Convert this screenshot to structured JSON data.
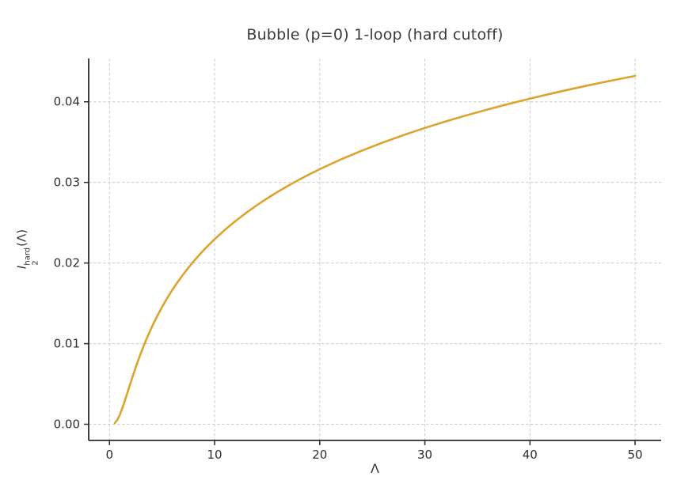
{
  "colors": {
    "curve": "#DCA42C",
    "grid": "#cccccc",
    "spine": "#2b2b2b",
    "tick_text": "#2e2e2e",
    "title_text": "#3a3a3a",
    "background": "#ffffff"
  },
  "ylabel_parts": {
    "base": "I",
    "sub": "2",
    "sup": "hard",
    "arg": "(Λ)"
  },
  "chart_data": {
    "type": "line",
    "title": "Bubble (p=0) 1-loop (hard cutoff)",
    "xlabel": "Λ",
    "ylabel": "I_2^hard(Λ)",
    "grid": true,
    "grid_style": "dashed",
    "legend": false,
    "xlim": [
      -1.98,
      52.48
    ],
    "ylim": [
      -0.00201,
      0.04537
    ],
    "xticks": [
      0,
      10,
      20,
      30,
      40,
      50
    ],
    "xtick_labels": [
      "0",
      "10",
      "20",
      "30",
      "40",
      "50"
    ],
    "yticks": [
      0.0,
      0.01,
      0.02,
      0.03,
      0.04
    ],
    "ytick_labels": [
      "0.00",
      "0.01",
      "0.02",
      "0.03",
      "0.04"
    ],
    "series": [
      {
        "name": "I2_hard",
        "x": [
          0.5,
          0.75,
          1,
          1.25,
          1.5,
          1.75,
          2,
          2.5,
          3,
          3.5,
          4,
          4.5,
          5,
          5.5,
          6,
          6.5,
          7,
          7.5,
          8,
          8.5,
          9,
          9.5,
          10,
          11,
          12,
          13,
          14,
          15,
          16,
          17,
          18,
          19,
          20,
          22,
          24,
          26,
          28,
          30,
          32,
          34,
          36,
          38,
          40,
          42,
          44,
          46,
          48,
          50
        ],
        "y": [
          0.000147,
          0.000546,
          0.001223,
          0.002099,
          0.00308,
          0.004103,
          0.005125,
          0.007085,
          0.008882,
          0.010508,
          0.011981,
          0.01332,
          0.014542,
          0.015666,
          0.016704,
          0.017668,
          0.018566,
          0.019408,
          0.020198,
          0.020944,
          0.021649,
          0.022318,
          0.022954,
          0.02414,
          0.025225,
          0.026226,
          0.027154,
          0.02802,
          0.02883,
          0.029593,
          0.030311,
          0.030993,
          0.031638,
          0.03284,
          0.033937,
          0.034949,
          0.035883,
          0.036756,
          0.03757,
          0.038338,
          0.039059,
          0.039745,
          0.040392,
          0.041011,
          0.041598,
          0.042162,
          0.0427,
          0.043215
        ]
      }
    ]
  }
}
